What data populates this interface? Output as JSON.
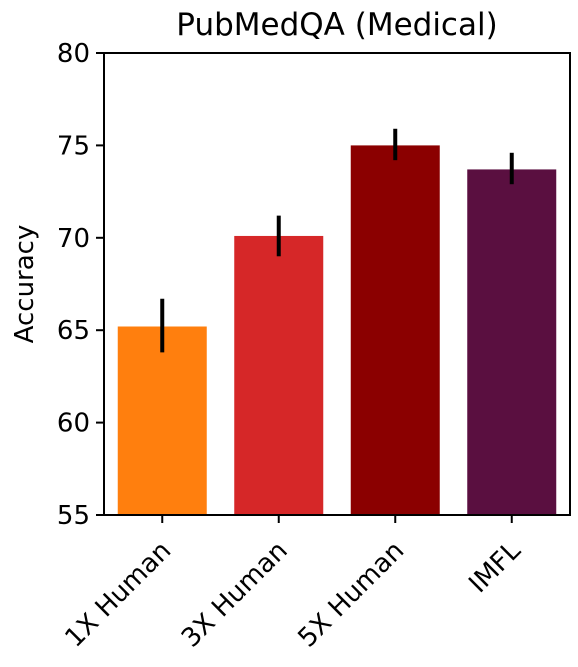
{
  "chart_data": {
    "type": "bar",
    "title": "PubMedQA (Medical)",
    "xlabel": "",
    "ylabel": "Accuracy",
    "categories": [
      "1X Human",
      "3X Human",
      "5X Human",
      "IMFL"
    ],
    "values": [
      65.2,
      70.1,
      75.0,
      73.7
    ],
    "error_low": [
      63.8,
      69.0,
      74.2,
      72.9
    ],
    "error_high": [
      66.7,
      71.2,
      75.9,
      74.6
    ],
    "colors": [
      "#ff7f0e",
      "#d62728",
      "#8b0000",
      "#5a0f40"
    ],
    "ylim": [
      55,
      80
    ],
    "yticks": [
      "55",
      "60",
      "65",
      "70",
      "75",
      "80"
    ],
    "grid": false,
    "legend": null
  }
}
